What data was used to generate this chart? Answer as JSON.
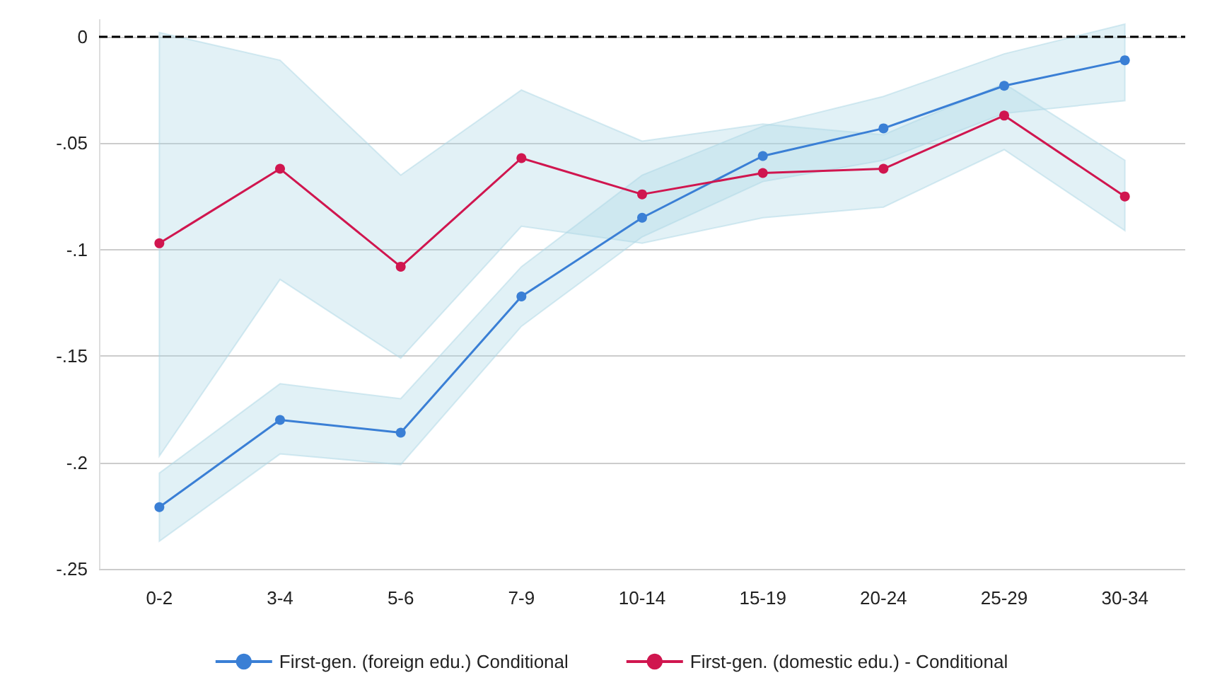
{
  "chart_data": {
    "type": "line",
    "categories": [
      "0-2",
      "3-4",
      "5-6",
      "7-9",
      "10-14",
      "15-19",
      "20-24",
      "25-29",
      "30-34"
    ],
    "series": [
      {
        "name": "First-gen. (foreign edu.) Conditional",
        "color": "#3a7fd5",
        "values": [
          -0.221,
          -0.18,
          -0.186,
          -0.122,
          -0.085,
          -0.056,
          -0.043,
          -0.023,
          -0.011
        ],
        "lower": [
          -0.237,
          -0.196,
          -0.201,
          -0.136,
          -0.094,
          -0.068,
          -0.058,
          -0.036,
          -0.03
        ],
        "upper": [
          -0.205,
          -0.163,
          -0.17,
          -0.108,
          -0.065,
          -0.042,
          -0.028,
          -0.008,
          0.006
        ]
      },
      {
        "name": "First-gen. (domestic edu.) - Conditional",
        "color": "#d0164f",
        "values": [
          -0.097,
          -0.062,
          -0.108,
          -0.057,
          -0.074,
          -0.064,
          -0.062,
          -0.037,
          -0.075
        ],
        "lower": [
          -0.197,
          -0.114,
          -0.151,
          -0.089,
          -0.097,
          -0.085,
          -0.08,
          -0.053,
          -0.091
        ],
        "upper": [
          0.002,
          -0.011,
          -0.065,
          -0.025,
          -0.049,
          -0.041,
          -0.046,
          -0.022,
          -0.058
        ]
      }
    ],
    "ylim": [
      -0.25,
      0.008
    ],
    "yticks": [
      {
        "value": -0.25,
        "label": "-.25"
      },
      {
        "value": -0.2,
        "label": "-.2"
      },
      {
        "value": -0.15,
        "label": "-.15"
      },
      {
        "value": -0.1,
        "label": "-.1"
      },
      {
        "value": -0.05,
        "label": "-.05"
      },
      0
    ],
    "ref_lines": [
      {
        "axis": "y",
        "value": 0,
        "color": "#000000",
        "line_style": "dashed"
      }
    ],
    "grid": "y",
    "legend": "bottom",
    "marker": "circle",
    "line_style": "solid"
  }
}
